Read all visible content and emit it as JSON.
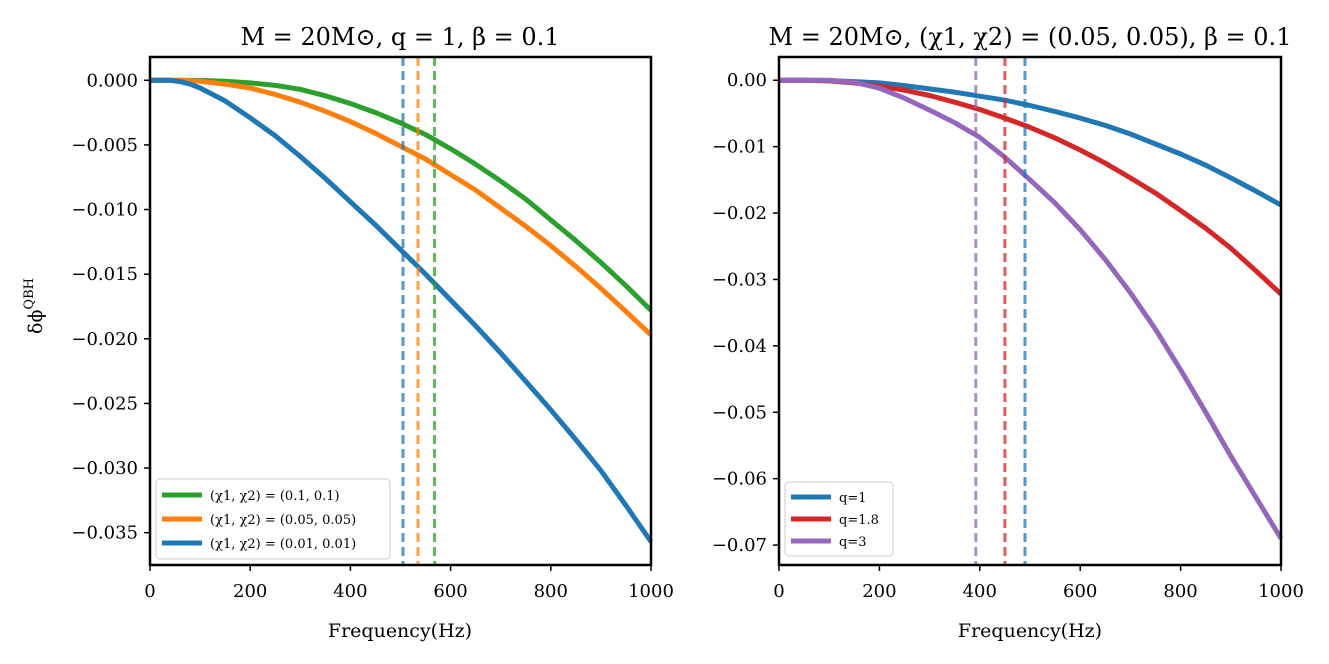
{
  "chart_data": [
    {
      "type": "line",
      "title": "M = 20M⊙, q = 1, β = 0.1",
      "xlabel": "Frequency(Hz)",
      "ylabel": "δϕ",
      "ylabel_sup": "QBH",
      "xlim": [
        0,
        1000
      ],
      "ylim": [
        -0.0375,
        0.0018
      ],
      "xticks": [
        0,
        200,
        400,
        600,
        800,
        1000
      ],
      "xtick_labels": [
        "0",
        "200",
        "400",
        "600",
        "800",
        "1000"
      ],
      "yticks": [
        0.0,
        -0.005,
        -0.01,
        -0.015,
        -0.02,
        -0.025,
        -0.03,
        -0.035
      ],
      "ytick_labels": [
        "0.000",
        "−0.005",
        "−0.010",
        "−0.015",
        "−0.020",
        "−0.025",
        "−0.030",
        "−0.035"
      ],
      "legend_position": "lower-left",
      "series": [
        {
          "name": "(χ1, χ2) = (0.1, 0.1)",
          "color": "#2ca02c",
          "x": [
            0,
            60,
            100,
            150,
            200,
            250,
            300,
            350,
            400,
            450,
            500,
            550,
            600,
            650,
            700,
            750,
            800,
            850,
            900,
            950,
            1000
          ],
          "y": [
            0,
            0,
            -2e-05,
            -8e-05,
            -0.0002,
            -0.0004,
            -0.0007,
            -0.0012,
            -0.0018,
            -0.0025,
            -0.0033,
            -0.0042,
            -0.0053,
            -0.0065,
            -0.0078,
            -0.0092,
            -0.0108,
            -0.0124,
            -0.0141,
            -0.0159,
            -0.0178
          ],
          "vline": 568
        },
        {
          "name": "(χ1, χ2) = (0.05, 0.05)",
          "color": "#ff7f0e",
          "x": [
            0,
            60,
            100,
            150,
            200,
            250,
            300,
            350,
            400,
            450,
            500,
            550,
            600,
            650,
            700,
            750,
            800,
            850,
            900,
            950,
            1000
          ],
          "y": [
            0,
            0,
            -8e-05,
            -0.0003,
            -0.0006,
            -0.0011,
            -0.0017,
            -0.0024,
            -0.0032,
            -0.0041,
            -0.0051,
            -0.0061,
            -0.0073,
            -0.0085,
            -0.0099,
            -0.0113,
            -0.0128,
            -0.0144,
            -0.0161,
            -0.0179,
            -0.0197
          ],
          "vline": 535
        },
        {
          "name": "(χ1, χ2) = (0.01, 0.01)",
          "color": "#1f77b4",
          "x": [
            0,
            40,
            60,
            80,
            100,
            150,
            200,
            250,
            300,
            350,
            400,
            450,
            500,
            550,
            600,
            650,
            700,
            750,
            800,
            850,
            900,
            950,
            1000
          ],
          "y": [
            0,
            0,
            -0.0001,
            -0.0003,
            -0.0006,
            -0.0016,
            -0.0029,
            -0.0043,
            -0.0059,
            -0.0076,
            -0.0094,
            -0.0112,
            -0.0131,
            -0.015,
            -0.017,
            -0.019,
            -0.0211,
            -0.0233,
            -0.0255,
            -0.0278,
            -0.0302,
            -0.0329,
            -0.0357
          ],
          "vline": 505
        }
      ]
    },
    {
      "type": "line",
      "title": "M = 20M⊙, (χ1, χ2) = (0.05, 0.05), β = 0.1",
      "xlabel": "Frequency(Hz)",
      "ylabel": "",
      "xlim": [
        0,
        1000
      ],
      "ylim": [
        -0.073,
        0.0035
      ],
      "xticks": [
        0,
        200,
        400,
        600,
        800,
        1000
      ],
      "xtick_labels": [
        "0",
        "200",
        "400",
        "600",
        "800",
        "1000"
      ],
      "yticks": [
        0.0,
        -0.01,
        -0.02,
        -0.03,
        -0.04,
        -0.05,
        -0.06,
        -0.07
      ],
      "ytick_labels": [
        "0.00",
        "−0.01",
        "−0.02",
        "−0.03",
        "−0.04",
        "−0.05",
        "−0.06",
        "−0.07"
      ],
      "legend_position": "lower-left",
      "series": [
        {
          "name": "q=1",
          "color": "#1f77b4",
          "x": [
            0,
            50,
            100,
            150,
            200,
            250,
            300,
            350,
            400,
            450,
            500,
            550,
            600,
            650,
            700,
            750,
            800,
            850,
            900,
            950,
            1000
          ],
          "y": [
            0,
            0,
            -5e-05,
            -0.0002,
            -0.0004,
            -0.0008,
            -0.0013,
            -0.0018,
            -0.0024,
            -0.003,
            -0.0038,
            -0.0047,
            -0.0057,
            -0.0068,
            -0.0081,
            -0.0096,
            -0.0111,
            -0.0128,
            -0.0147,
            -0.0167,
            -0.0188
          ],
          "vline": 490
        },
        {
          "name": "q=1.8",
          "color": "#d62728",
          "x": [
            0,
            50,
            100,
            150,
            200,
            250,
            300,
            350,
            400,
            450,
            500,
            550,
            600,
            650,
            700,
            750,
            800,
            850,
            900,
            950,
            1000
          ],
          "y": [
            0,
            0,
            -0.0001,
            -0.0004,
            -0.0009,
            -0.0015,
            -0.0023,
            -0.0033,
            -0.0044,
            -0.0057,
            -0.0071,
            -0.0087,
            -0.0105,
            -0.0125,
            -0.0147,
            -0.017,
            -0.0196,
            -0.0223,
            -0.0253,
            -0.0287,
            -0.0322
          ],
          "vline": 450
        },
        {
          "name": "q=3",
          "color": "#9467bd",
          "x": [
            0,
            50,
            100,
            150,
            200,
            250,
            300,
            350,
            400,
            450,
            500,
            550,
            600,
            650,
            700,
            750,
            800,
            850,
            900,
            950,
            1000
          ],
          "y": [
            0,
            0,
            0,
            -0.0003,
            -0.0012,
            -0.0027,
            -0.0045,
            -0.0064,
            -0.0086,
            -0.0116,
            -0.015,
            -0.0185,
            -0.0225,
            -0.027,
            -0.032,
            -0.0375,
            -0.0436,
            -0.05,
            -0.0566,
            -0.0628,
            -0.069
          ],
          "vline": 392
        }
      ]
    }
  ]
}
